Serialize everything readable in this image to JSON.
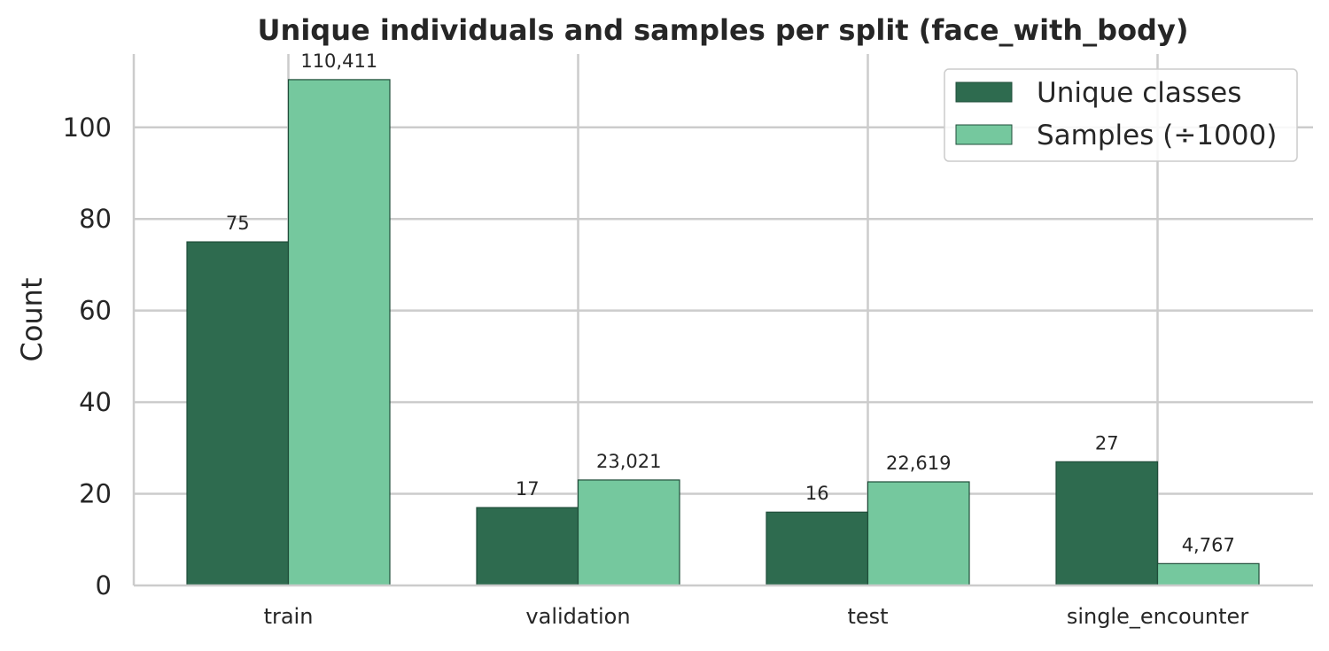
{
  "chart_data": {
    "type": "bar",
    "title": "Unique individuals and samples per split (face_with_body)",
    "xlabel": "",
    "ylabel": "Count",
    "categories": [
      "train",
      "validation",
      "test",
      "single_encounter"
    ],
    "series": [
      {
        "name": "Unique classes",
        "values": [
          75,
          17,
          16,
          27
        ],
        "labels": [
          "75",
          "17",
          "16",
          "27"
        ],
        "color": "#2e6b4f"
      },
      {
        "name": "Samples (÷1000)",
        "values": [
          110.411,
          23.021,
          22.619,
          4.767
        ],
        "labels": [
          "110,411",
          "23,021",
          "22,619",
          "4,767"
        ],
        "color": "#75c89e"
      }
    ],
    "ylim": [
      0,
      116
    ],
    "yticks": [
      0,
      20,
      40,
      60,
      80,
      100
    ],
    "grid": true,
    "legend_position": "top-right"
  }
}
